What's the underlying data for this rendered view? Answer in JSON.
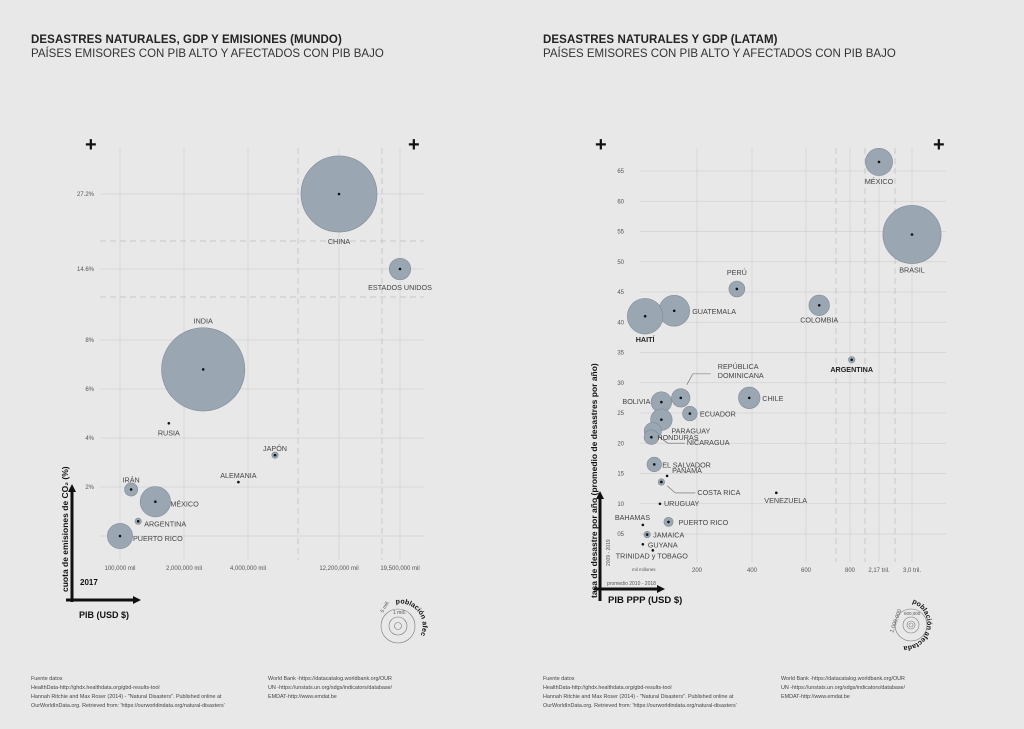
{
  "left": {
    "title": "DESASTRES NATURALES, GDP Y EMISIONES (MUNDO)",
    "subtitle": "PAÍSES EMISORES CON PIB ALTO Y AFECTADOS CON PIB BAJO",
    "year_label": "2017",
    "legend": {
      "title": "población afectada",
      "outer": "5 mill.",
      "inner": "1 mill."
    },
    "sources_col1": [
      "Fuente datos",
      "HealthData-http://ghdx.healthdata.org/gbd-results-tool",
      "Hannah Ritchie and Max Roser (2014) - \"Natural Disasters\". Published online at",
      "OurWorldInData.org. Retrieved from: 'https://ourworldindata.org/natural-disasters'"
    ],
    "sources_col2": [
      "World Bank -https://datacatalog.worldbank.org/OUR",
      "UN -https://unstats.un.org/sdgs/indicators/database/",
      "EMDAT-http://www.emdat.be"
    ]
  },
  "right": {
    "title": "DESASTRES NATURALES Y GDP (LATAM)",
    "subtitle": "PAÍSES EMISORES CON PIB ALTO Y AFECTADOS CON PIB BAJO",
    "y_note": "2009 - 2019",
    "x_note": "promedio 2010 - 2018",
    "x_unit": "mil millones",
    "legend": {
      "title": "población afectada",
      "outer": "1,000,000",
      "inner": "500,000"
    },
    "sources_col1": [
      "Fuente datos",
      "HealthData-http://ghdx.healthdata.org/gbd-results-tool",
      "Hannah Ritchie and Max Roser (2014) - \"Natural Disasters\". Published online at",
      "OurWorldInData.org. Retrieved from: 'https://ourworldindata.org/natural-disasters'"
    ],
    "sources_col2": [
      "World Bank -https://datacatalog.worldbank.org/OUR",
      "UN -https://unstats.un.org/sdgs/indicators/database/",
      "EMDAT-http://www.emdat.be"
    ]
  },
  "chart_data": [
    {
      "type": "scatter",
      "title": "DESASTRES NATURALES, GDP Y EMISIONES (MUNDO)",
      "xlabel": "PIB (USD $)",
      "ylabel": "cuota de emisiones de CO₂ (%)",
      "x_scale": "broken",
      "x_ticks": [
        "100,000 mil",
        "2,000,000 mil",
        "4,000,000 mil",
        "12,200,000 mil",
        "19,500,000 mil"
      ],
      "y_ticks": [
        "2%",
        "4%",
        "6%",
        "8%",
        "14.6%",
        "27.2%"
      ],
      "size_meaning": "población afectada",
      "points": [
        {
          "name": "CHINA",
          "x": 12200000,
          "y": 27.2,
          "size": 5.0,
          "bold": false
        },
        {
          "name": "ESTADOS UNIDOS",
          "x": 19500000,
          "y": 14.6,
          "size": 0.4,
          "bold": false
        },
        {
          "name": "INDIA",
          "x": 2600000,
          "y": 6.8,
          "size": 6.0,
          "bold": false
        },
        {
          "name": "RUSIA",
          "x": 1550000,
          "y": 4.6,
          "size": 0.0,
          "bold": false
        },
        {
          "name": "JAPÓN",
          "x": 4900000,
          "y": 3.3,
          "size": 0.02,
          "bold": false
        },
        {
          "name": "ALEMANIA",
          "x": 3700000,
          "y": 2.2,
          "size": 0.0,
          "bold": false
        },
        {
          "name": "IRÁN",
          "x": 430000,
          "y": 1.9,
          "size": 0.15,
          "bold": false
        },
        {
          "name": "MÉXICO",
          "x": 1150000,
          "y": 1.4,
          "size": 0.8,
          "bold": false
        },
        {
          "name": "ARGENTINA",
          "x": 640000,
          "y": 0.6,
          "size": 0.03,
          "bold": false
        },
        {
          "name": "PUERTO RICO",
          "x": 100000,
          "y": 0.0,
          "size": 0.55,
          "bold": false
        }
      ]
    },
    {
      "type": "scatter",
      "title": "DESASTRES NATURALES Y GDP (LATAM)",
      "xlabel": "PIB PPP (USD $)",
      "ylabel": "tasa de desastre por año (promedio de desastres por año)",
      "x_ticks": [
        "200",
        "400",
        "600",
        "800",
        "2,17 tril.",
        "3,0 tril."
      ],
      "y_ticks": [
        "05",
        "10",
        "15",
        "20",
        "25",
        "30",
        "35",
        "40",
        "45",
        "50",
        "55",
        "60",
        "65"
      ],
      "size_meaning": "población afectada",
      "points": [
        {
          "name": "MÉXICO",
          "x": 2170,
          "y": 66.5,
          "size": 0.35,
          "bold": false
        },
        {
          "name": "BRASIL",
          "x": 3000,
          "y": 54.5,
          "size": 1.6,
          "bold": false
        },
        {
          "name": "PERÚ",
          "x": 345,
          "y": 45.5,
          "size": 0.12,
          "bold": false
        },
        {
          "name": "COLOMBIA",
          "x": 660,
          "y": 42.8,
          "size": 0.2,
          "bold": false
        },
        {
          "name": "GUATEMALA",
          "x": 120,
          "y": 41.9,
          "size": 0.45,
          "bold": false
        },
        {
          "name": "HAITÍ",
          "x": 18,
          "y": 41.0,
          "size": 0.6,
          "bold": true
        },
        {
          "name": "ARGENTINA",
          "x": 880,
          "y": 33.8,
          "size": 0.02,
          "bold": true
        },
        {
          "name": "REPÚBLICA DOMINICANA",
          "x": 143,
          "y": 27.5,
          "size": 0.16,
          "bold": false
        },
        {
          "name": "CHILE",
          "x": 390,
          "y": 27.5,
          "size": 0.22,
          "bold": false
        },
        {
          "name": "BOLIVIA",
          "x": 75,
          "y": 26.8,
          "size": 0.2,
          "bold": false
        },
        {
          "name": "ECUADOR",
          "x": 175,
          "y": 24.9,
          "size": 0.1,
          "bold": false
        },
        {
          "name": "PARAGUAY",
          "x": 75,
          "y": 23.9,
          "size": 0.22,
          "bold": false
        },
        {
          "name": "NICARAGUA",
          "x": 45,
          "y": 22.0,
          "size": 0.14,
          "bold": false
        },
        {
          "name": "HONDURAS",
          "x": 40,
          "y": 21.0,
          "size": 0.1,
          "bold": false
        },
        {
          "name": "EL SALVADOR",
          "x": 50,
          "y": 16.5,
          "size": 0.1,
          "bold": false
        },
        {
          "name": "PANAMÁ",
          "x": 95,
          "y": 14.6,
          "size": 0.0,
          "bold": false
        },
        {
          "name": "COSTA RICA",
          "x": 75,
          "y": 13.6,
          "size": 0.02,
          "bold": false
        },
        {
          "name": "VENEZUELA",
          "x": 490,
          "y": 11.8,
          "size": 0.0,
          "bold": false
        },
        {
          "name": "URUGUAY",
          "x": 70,
          "y": 10.0,
          "size": 0.0,
          "bold": false
        },
        {
          "name": "BAHAMAS",
          "x": 10,
          "y": 6.5,
          "size": 0.0,
          "bold": false
        },
        {
          "name": "PUERTO RICO",
          "x": 100,
          "y": 7.0,
          "size": 0.04,
          "bold": false
        },
        {
          "name": "JAMAICA",
          "x": 25,
          "y": 4.9,
          "size": 0.02,
          "bold": false
        },
        {
          "name": "GUYANA",
          "x": 10,
          "y": 3.3,
          "size": 0.0,
          "bold": false
        },
        {
          "name": "TRINIDAD y TOBAGO",
          "x": 45,
          "y": 2.3,
          "size": 0.0,
          "bold": false
        }
      ]
    }
  ]
}
